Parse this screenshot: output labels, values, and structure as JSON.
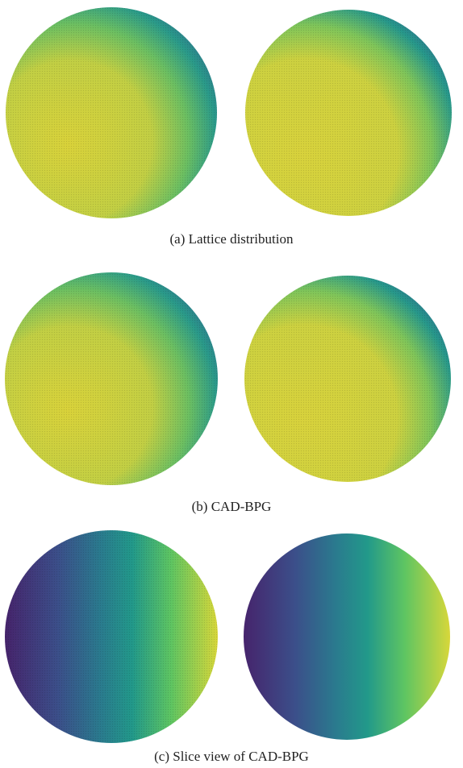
{
  "captions": [
    "(a) Lattice distribution",
    "(b) CAD-BPG",
    "(c) Slice view of CAD-BPG"
  ]
}
